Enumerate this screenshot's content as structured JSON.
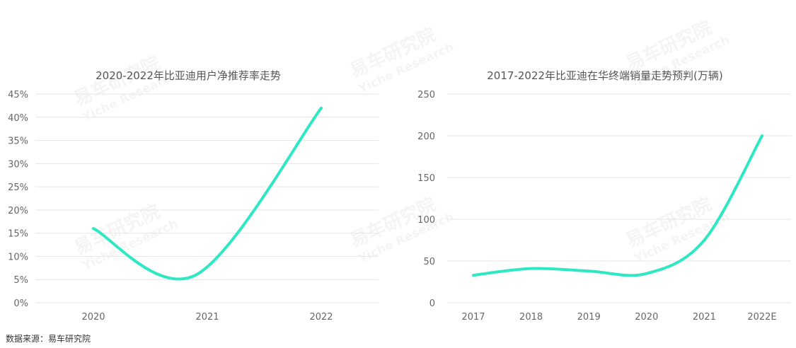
{
  "source_note": "数据来源：易车研究院",
  "watermark": {
    "brand": "易车研究院",
    "latin": "Yiche Research"
  },
  "colors": {
    "line": "#2ee8c4",
    "grid": "#e6e6e6",
    "text": "#666666"
  },
  "chart_data": [
    {
      "type": "line",
      "title": "2020-2022年比亚迪用户净推荐率走势",
      "categories": [
        "2020",
        "2021",
        "2022"
      ],
      "y_ticks": [
        "0%",
        "5%",
        "10%",
        "15%",
        "20%",
        "25%",
        "30%",
        "35%",
        "40%",
        "45%"
      ],
      "ylim": [
        0,
        45
      ],
      "y_unit": "%",
      "series": [
        {
          "x": [
            2020,
            2020.9,
            2022
          ],
          "values": [
            16,
            6,
            42
          ]
        }
      ],
      "grid": true
    },
    {
      "type": "line",
      "title": "2017-2022年比亚迪在华终端销量走势预判(万辆)",
      "categories": [
        "2017",
        "2018",
        "2019",
        "2020",
        "2021",
        "2022E"
      ],
      "y_ticks": [
        "0",
        "50",
        "100",
        "150",
        "200",
        "250"
      ],
      "ylim": [
        0,
        250
      ],
      "series": [
        {
          "values": [
            33,
            41,
            38,
            35,
            75,
            200
          ]
        }
      ],
      "grid": true
    }
  ]
}
